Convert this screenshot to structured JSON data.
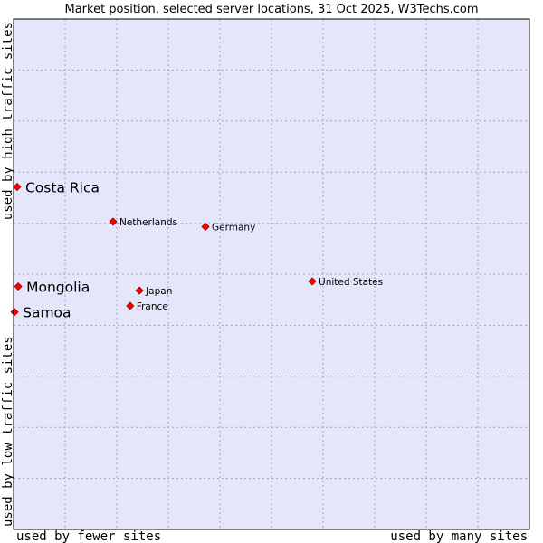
{
  "chart_data": {
    "type": "scatter",
    "title": "Market position, selected server locations, 31 Oct 2025, W3Techs.com",
    "xlabel_left": "used by fewer sites",
    "xlabel_right": "used by many sites",
    "ylabel_bottom": "used by low traffic sites",
    "ylabel_top": "used by high traffic sites",
    "xlim": [
      0,
      10
    ],
    "ylim": [
      0,
      10
    ],
    "grid": true,
    "colors": {
      "plot_bg": "#e6e6fa",
      "grid": "#a0a0c0",
      "marker": "#ff0000",
      "marker_edge": "#990000"
    },
    "points": [
      {
        "label": "Costa Rica",
        "x": 0.07,
        "y": 6.71,
        "size": "large"
      },
      {
        "label": "Netherlands",
        "x": 1.93,
        "y": 6.03,
        "size": "small"
      },
      {
        "label": "Germany",
        "x": 3.72,
        "y": 5.93,
        "size": "small"
      },
      {
        "label": "United States",
        "x": 5.79,
        "y": 4.86,
        "size": "small"
      },
      {
        "label": "Mongolia",
        "x": 0.09,
        "y": 4.76,
        "size": "large"
      },
      {
        "label": "Japan",
        "x": 2.44,
        "y": 4.68,
        "size": "small"
      },
      {
        "label": "France",
        "x": 2.26,
        "y": 4.38,
        "size": "small"
      },
      {
        "label": "Samoa",
        "x": 0.02,
        "y": 4.26,
        "size": "large"
      }
    ]
  }
}
